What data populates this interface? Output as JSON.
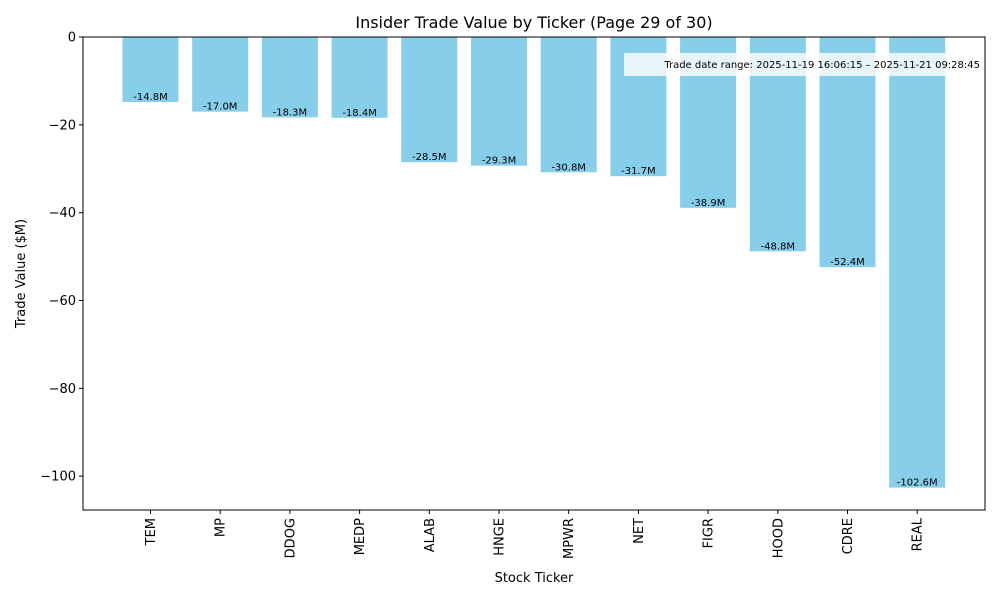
{
  "chart_data": {
    "type": "bar",
    "title": "Insider Trade Value by Ticker (Page 29 of 30)",
    "xlabel": "Stock Ticker",
    "ylabel": "Trade Value ($M)",
    "ylim": [
      -107.7,
      0
    ],
    "yticks": [
      0,
      -20,
      -40,
      -60,
      -80,
      -100
    ],
    "ytick_labels": [
      "0",
      "−20",
      "−40",
      "−60",
      "−80",
      "−100"
    ],
    "categories": [
      "TEM",
      "MP",
      "DDOG",
      "MEDP",
      "ALAB",
      "HNGE",
      "MPWR",
      "NET",
      "FIGR",
      "HOOD",
      "CDRE",
      "REAL"
    ],
    "values": [
      -14.8,
      -17.0,
      -18.3,
      -18.4,
      -28.5,
      -29.3,
      -30.8,
      -31.7,
      -38.9,
      -48.8,
      -52.4,
      -102.6
    ],
    "bar_labels": [
      "-14.8M",
      "-17.0M",
      "-18.3M",
      "-18.4M",
      "-28.5M",
      "-29.3M",
      "-30.8M",
      "-31.7M",
      "-38.9M",
      "-48.8M",
      "-52.4M",
      "-102.6M"
    ],
    "bar_color": "#87ceeb",
    "annotation": "Trade date range: 2025-11-19 16:06:15 – 2025-11-21 09:28:45",
    "annotation_placement": "top-right"
  }
}
